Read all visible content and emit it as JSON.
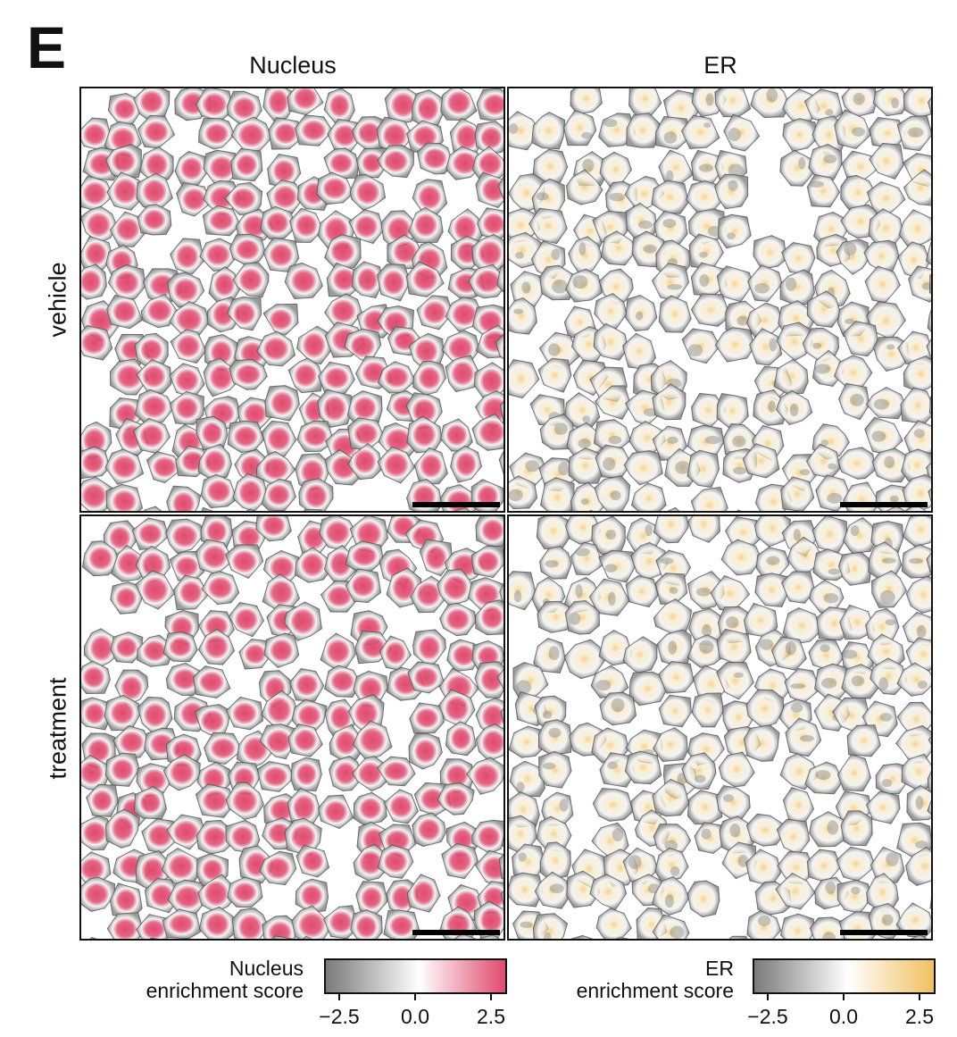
{
  "panel_letter": "E",
  "columns": [
    "Nucleus",
    "ER"
  ],
  "rows": [
    "vehicle",
    "treatment"
  ],
  "colors": {
    "low": "#7a7a7a",
    "mid": "#ffffff",
    "nucleus_high": "#e04a6e",
    "er_high": "#f0c060",
    "border": "#111111"
  },
  "colorbars": [
    {
      "label_line1": "Nucleus",
      "label_line2": "enrichment score",
      "ticks": [
        "−2.5",
        "0.0",
        "2.5"
      ],
      "tick_values": [
        -2.5,
        0.0,
        2.5
      ],
      "range": [
        -3.0,
        3.0
      ],
      "high_color": "#e04a6e"
    },
    {
      "label_line1": "ER",
      "label_line2": "enrichment score",
      "ticks": [
        "−2.5",
        "0.0",
        "2.5"
      ],
      "tick_values": [
        -2.5,
        0.0,
        2.5
      ],
      "range": [
        -3.0,
        3.0
      ],
      "high_color": "#f0c060"
    }
  ],
  "chart_data": {
    "type": "heatmap",
    "title": "",
    "description": "Spatial cell segmentation maps colored by per-pixel enrichment score",
    "panels": [
      {
        "row": "vehicle",
        "column": "Nucleus",
        "colormap": "gray-white-pink",
        "scale_bar": true
      },
      {
        "row": "vehicle",
        "column": "ER",
        "colormap": "gray-white-yellow",
        "scale_bar": true
      },
      {
        "row": "treatment",
        "column": "Nucleus",
        "colormap": "gray-white-pink",
        "scale_bar": true
      },
      {
        "row": "treatment",
        "column": "ER",
        "colormap": "gray-white-yellow",
        "scale_bar": true
      }
    ],
    "colorbar_range": [
      -3.0,
      3.0
    ],
    "colorbar_ticks": [
      -2.5,
      0.0,
      2.5
    ]
  }
}
